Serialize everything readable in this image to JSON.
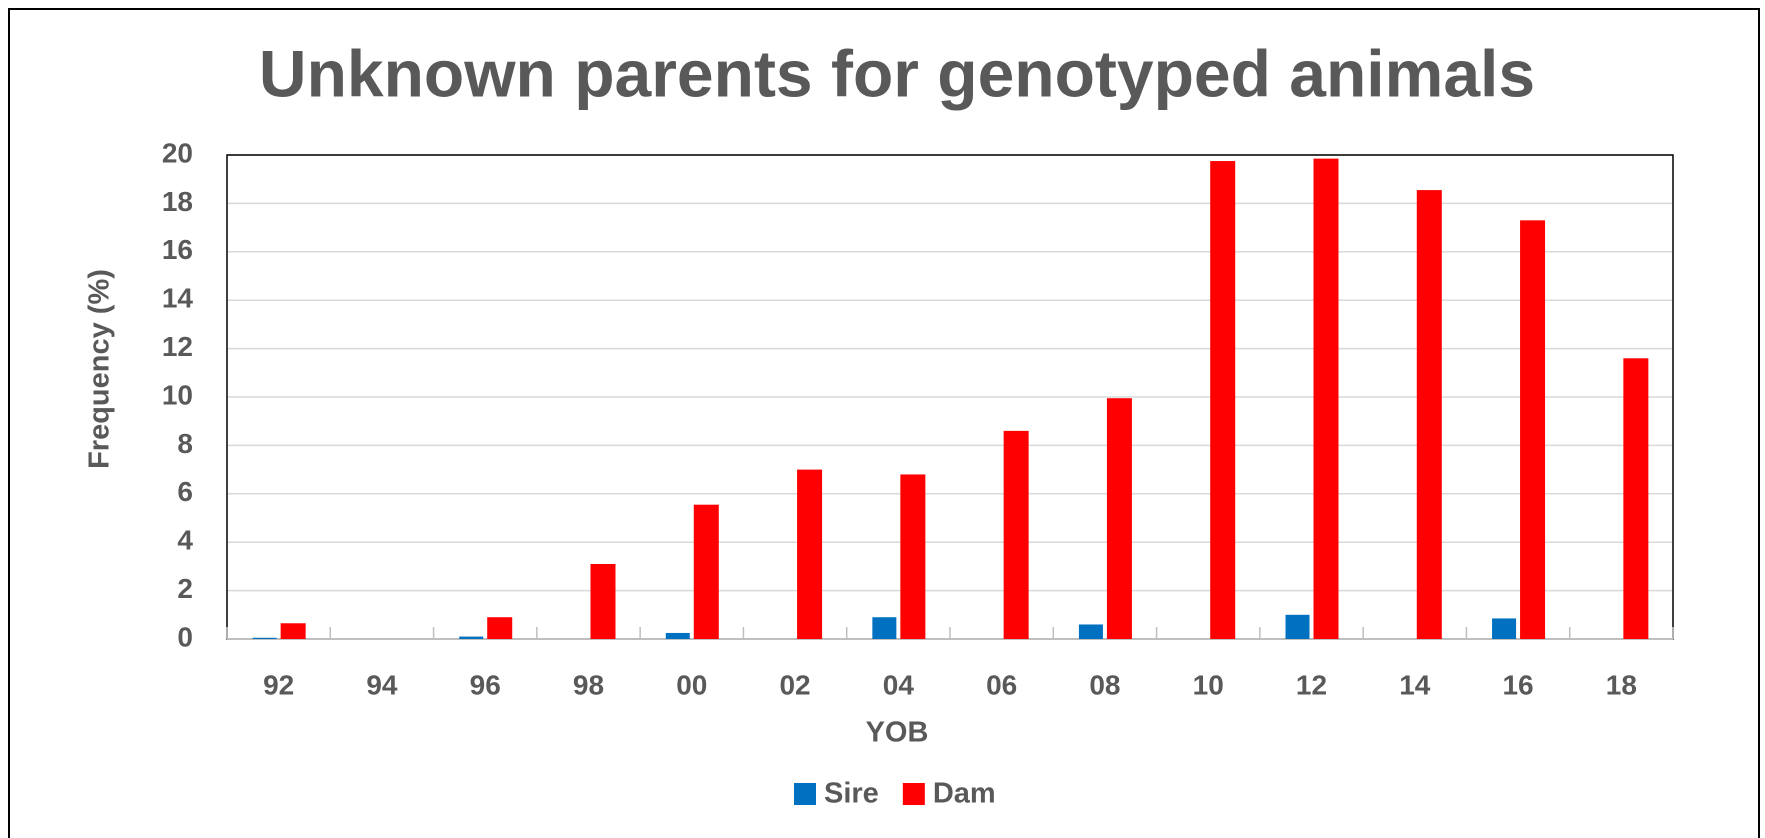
{
  "chart_data": {
    "type": "bar",
    "title": "Unknown parents for genotyped animals",
    "x_label": "YOB",
    "y_label": "Frequency (%)",
    "categories": [
      "92",
      "94",
      "96",
      "98",
      "00",
      "02",
      "04",
      "06",
      "08",
      "10",
      "12",
      "14",
      "16",
      "18"
    ],
    "series": [
      {
        "name": "Sire",
        "color": "#0070c0",
        "values": [
          0.05,
          0,
          0.1,
          0,
          0.25,
          0,
          0.9,
          0,
          0.6,
          0,
          1.0,
          0,
          0.85,
          0
        ]
      },
      {
        "name": "Dam",
        "color": "#ff0000",
        "values": [
          0.65,
          0,
          0.9,
          3.1,
          5.55,
          7.0,
          6.8,
          8.6,
          9.95,
          19.75,
          19.85,
          18.55,
          17.3,
          11.6
        ]
      }
    ],
    "ylim": [
      0,
      20
    ],
    "yticks": [
      0,
      2,
      4,
      6,
      8,
      10,
      12,
      14,
      16,
      18,
      20
    ],
    "grid": true,
    "legend": "bottom"
  }
}
